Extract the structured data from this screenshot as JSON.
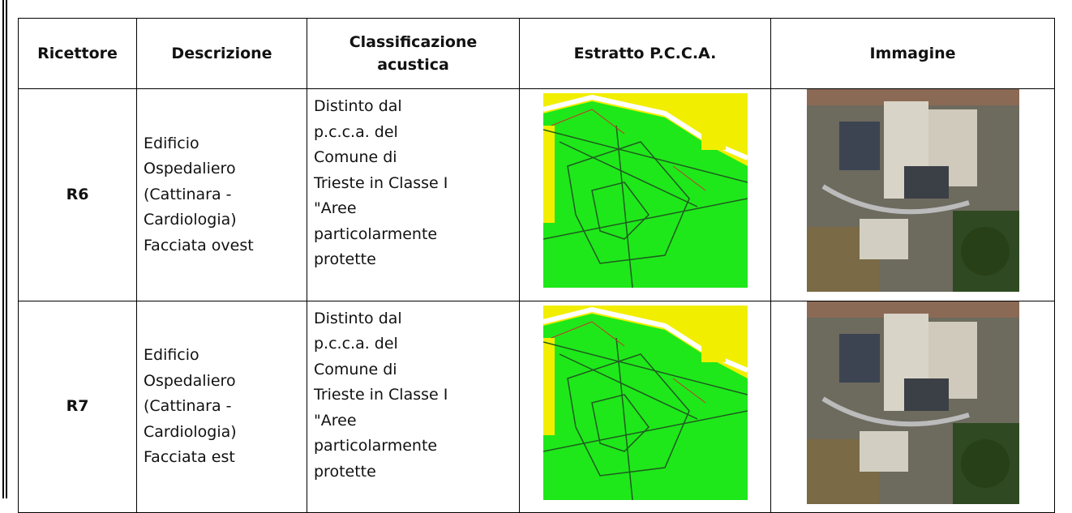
{
  "table": {
    "header": [
      [
        "Ricettore"
      ],
      [
        "Descrizione"
      ],
      [
        "Classificazione",
        "acustica"
      ],
      [
        "Estratto P.C.C.A."
      ],
      [
        "Immagine"
      ]
    ],
    "rows": [
      {
        "ricettore": "R6",
        "descrizione": [
          "Edificio",
          "Ospedaliero",
          "(Cattinara -",
          "Cardiologia)",
          "Facciata ovest"
        ],
        "classificazione": [
          "Distinto dal",
          "p.c.c.a. del",
          "Comune di",
          "Trieste in Classe I",
          "\"Aree",
          "particolarmente",
          "protette"
        ]
      },
      {
        "ricettore": "R7",
        "descrizione": [
          "Edificio",
          "Ospedaliero",
          "(Cattinara -",
          "Cardiologia)",
          "Facciata est"
        ],
        "classificazione": [
          "Distinto dal",
          "p.c.c.a. del",
          "Comune di",
          "Trieste in Classe I",
          "\"Aree",
          "particolarmente",
          "protette"
        ]
      }
    ]
  }
}
